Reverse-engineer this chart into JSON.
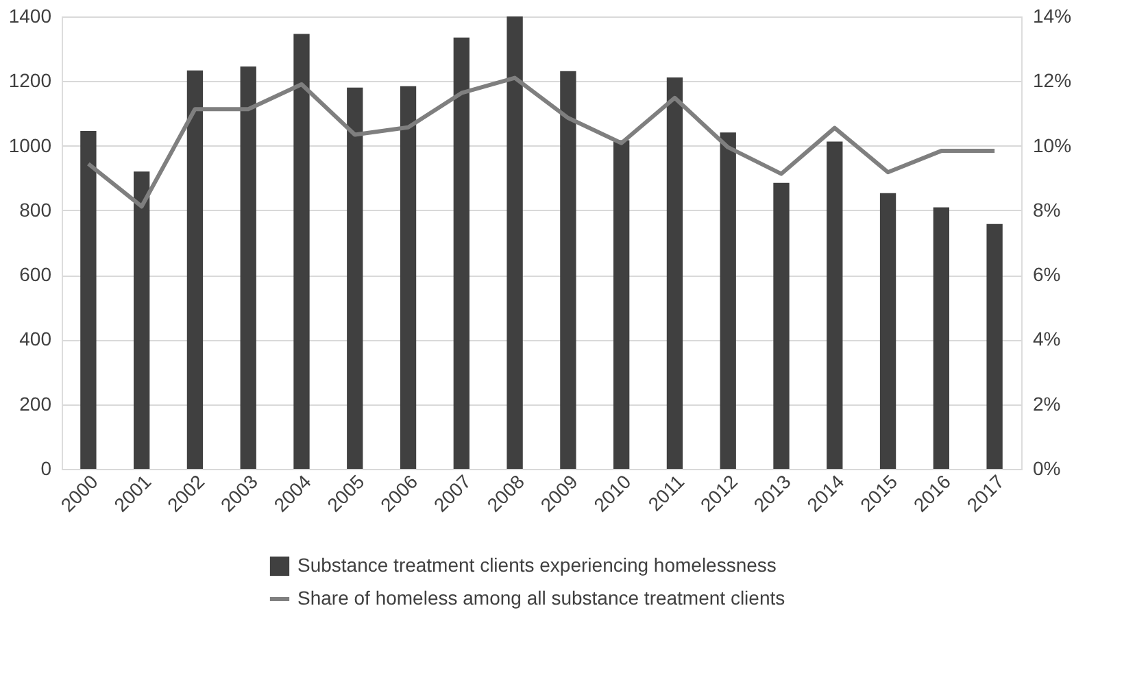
{
  "chart_data": {
    "type": "bar",
    "categories": [
      "2000",
      "2001",
      "2002",
      "2003",
      "2004",
      "2005",
      "2006",
      "2007",
      "2008",
      "2009",
      "2010",
      "2011",
      "2012",
      "2013",
      "2014",
      "2015",
      "2016",
      "2017"
    ],
    "series": [
      {
        "name": "Substance treatment clients experiencing homelessness",
        "color": "#404040",
        "values": [
          1046,
          920,
          1233,
          1245,
          1346,
          1180,
          1184,
          1335,
          1400,
          1231,
          1017,
          1211,
          1041,
          885,
          1013,
          853,
          809,
          758
        ]
      },
      {
        "name": "Share of homeless among all substance treatment clients",
        "type": "line",
        "axis": "y2",
        "color": "#7f7f7f",
        "values": [
          9.44,
          8.12,
          11.13,
          11.13,
          11.9,
          10.34,
          10.57,
          11.63,
          12.1,
          10.86,
          10.08,
          11.48,
          9.95,
          9.13,
          10.55,
          9.18,
          9.84,
          9.84
        ]
      }
    ],
    "ylim": [
      0,
      1400
    ],
    "yticks": [
      0,
      200,
      400,
      600,
      800,
      1000,
      1200,
      1400
    ],
    "y2lim": [
      0,
      14
    ],
    "y2ticks": [
      {
        "value": 0,
        "label": "0%"
      },
      {
        "value": 2,
        "label": "2%"
      },
      {
        "value": 4,
        "label": "4%"
      },
      {
        "value": 6,
        "label": "6%"
      },
      {
        "value": 8,
        "label": "8%"
      },
      {
        "value": 10,
        "label": "10%"
      },
      {
        "value": 12,
        "label": "12%"
      },
      {
        "value": 14,
        "label": "14%"
      }
    ],
    "grid": "y",
    "legend": "bottom",
    "marker": "none",
    "line_style": "solid"
  }
}
